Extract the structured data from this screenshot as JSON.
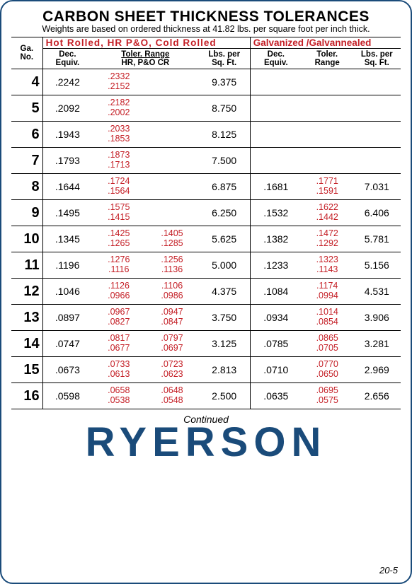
{
  "title": "CARBON SHEET THICKNESS TOLERANCES",
  "subtitle": "Weights are based on ordered thickness at 41.82 lbs. per square foot per inch thick.",
  "header_group_left": "Hot Rolled, HR P&O, Cold Rolled",
  "header_group_right": "Galvanized /Galvannealed",
  "cols": {
    "ga1": "Ga.",
    "ga2": "No.",
    "dec1": "Dec.",
    "dec2": "Equiv.",
    "tolr": "Toler. Range",
    "tolr2": "HR, P&O CR",
    "lbs1": "Lbs. per",
    "lbs2": "Sq. Ft.",
    "gdec1": "Dec.",
    "gdec2": "Equiv.",
    "gtol1": "Toler.",
    "gtol2": "Range",
    "glbs1": "Lbs. per",
    "glbs2": "Sq. Ft."
  },
  "rows": [
    {
      "ga": "4",
      "dec": ".2242",
      "tol1u": ".2332",
      "tol1l": ".2152",
      "tol2u": "",
      "tol2l": "",
      "lbs": "9.375",
      "gdec": "",
      "gtolu": "",
      "gtoll": "",
      "glbs": ""
    },
    {
      "ga": "5",
      "dec": ".2092",
      "tol1u": ".2182",
      "tol1l": ".2002",
      "tol2u": "",
      "tol2l": "",
      "lbs": "8.750",
      "gdec": "",
      "gtolu": "",
      "gtoll": "",
      "glbs": ""
    },
    {
      "ga": "6",
      "dec": ".1943",
      "tol1u": ".2033",
      "tol1l": ".1853",
      "tol2u": "",
      "tol2l": "",
      "lbs": "8.125",
      "gdec": "",
      "gtolu": "",
      "gtoll": "",
      "glbs": ""
    },
    {
      "ga": "7",
      "dec": ".1793",
      "tol1u": ".1873",
      "tol1l": ".1713",
      "tol2u": "",
      "tol2l": "",
      "lbs": "7.500",
      "gdec": "",
      "gtolu": "",
      "gtoll": "",
      "glbs": ""
    },
    {
      "ga": "8",
      "dec": ".1644",
      "tol1u": ".1724",
      "tol1l": ".1564",
      "tol2u": "",
      "tol2l": "",
      "lbs": "6.875",
      "gdec": ".1681",
      "gtolu": ".1771",
      "gtoll": ".1591",
      "glbs": "7.031"
    },
    {
      "ga": "9",
      "dec": ".1495",
      "tol1u": ".1575",
      "tol1l": ".1415",
      "tol2u": "",
      "tol2l": "",
      "lbs": "6.250",
      "gdec": ".1532",
      "gtolu": ".1622",
      "gtoll": ".1442",
      "glbs": "6.406"
    },
    {
      "ga": "10",
      "dec": ".1345",
      "tol1u": ".1425",
      "tol1l": ".1265",
      "tol2u": ".1405",
      "tol2l": ".1285",
      "lbs": "5.625",
      "gdec": ".1382",
      "gtolu": ".1472",
      "gtoll": ".1292",
      "glbs": "5.781"
    },
    {
      "ga": "11",
      "dec": ".1196",
      "tol1u": ".1276",
      "tol1l": ".1116",
      "tol2u": ".1256",
      "tol2l": ".1136",
      "lbs": "5.000",
      "gdec": ".1233",
      "gtolu": ".1323",
      "gtoll": ".1143",
      "glbs": "5.156"
    },
    {
      "ga": "12",
      "dec": ".1046",
      "tol1u": ".1126",
      "tol1l": ".0966",
      "tol2u": ".1106",
      "tol2l": ".0986",
      "lbs": "4.375",
      "gdec": ".1084",
      "gtolu": ".1174",
      "gtoll": ".0994",
      "glbs": "4.531"
    },
    {
      "ga": "13",
      "dec": ".0897",
      "tol1u": ".0967",
      "tol1l": ".0827",
      "tol2u": ".0947",
      "tol2l": ".0847",
      "lbs": "3.750",
      "gdec": ".0934",
      "gtolu": ".1014",
      "gtoll": ".0854",
      "glbs": "3.906"
    },
    {
      "ga": "14",
      "dec": ".0747",
      "tol1u": ".0817",
      "tol1l": ".0677",
      "tol2u": ".0797",
      "tol2l": ".0697",
      "lbs": "3.125",
      "gdec": ".0785",
      "gtolu": ".0865",
      "gtoll": ".0705",
      "glbs": "3.281"
    },
    {
      "ga": "15",
      "dec": ".0673",
      "tol1u": ".0733",
      "tol1l": ".0613",
      "tol2u": ".0723",
      "tol2l": ".0623",
      "lbs": "2.813",
      "gdec": ".0710",
      "gtolu": ".0770",
      "gtoll": ".0650",
      "glbs": "2.969"
    },
    {
      "ga": "16",
      "dec": ".0598",
      "tol1u": ".0658",
      "tol1l": ".0538",
      "tol2u": ".0648",
      "tol2l": ".0548",
      "lbs": "2.500",
      "gdec": ".0635",
      "gtolu": ".0695",
      "gtoll": ".0575",
      "glbs": "2.656"
    }
  ],
  "continued": "Continued",
  "brand": "RYERSON",
  "pagenum": "20-5",
  "colors": {
    "accent_red": "#c41e25",
    "brand_blue": "#1a4b7a",
    "text": "#000000",
    "background": "#ffffff"
  },
  "typography": {
    "title_fontsize": 21,
    "title_weight": 900,
    "subtitle_fontsize": 12.5,
    "body_fontsize": 13,
    "ga_fontsize": 20,
    "brand_fontsize": 58,
    "brand_letterspacing": 8
  }
}
